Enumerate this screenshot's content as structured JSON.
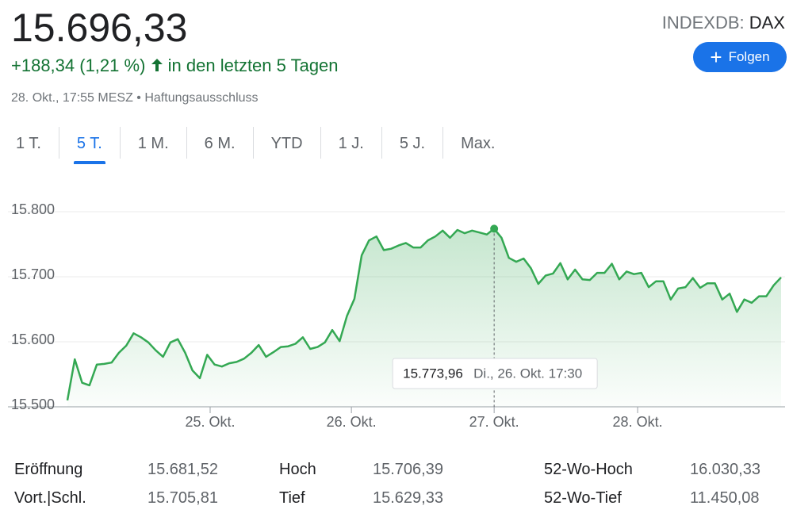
{
  "header": {
    "price": "15.696,33",
    "change": "+188,34 (1,21 %)",
    "period": "in den letzten 5 Tagen",
    "timestamp": "28. Okt., 17:55 MESZ",
    "disclaimer": "Haftungsausschluss",
    "ticker_exchange": "INDEXDB:",
    "ticker_symbol": "DAX",
    "follow": "Folgen"
  },
  "tabs": {
    "items": [
      "1 T.",
      "5 T.",
      "1 M.",
      "6 M.",
      "YTD",
      "1 J.",
      "5 J.",
      "Max."
    ],
    "selected": 1
  },
  "chart_data": {
    "type": "line",
    "color": "#34a853",
    "values": [
      15510,
      15573,
      15537,
      15533,
      15565,
      15566,
      15568,
      15583,
      15594,
      15613,
      15607,
      15599,
      15587,
      15577,
      15599,
      15604,
      15583,
      15556,
      15544,
      15580,
      15565,
      15562,
      15567,
      15569,
      15574,
      15583,
      15595,
      15577,
      15584,
      15592,
      15593,
      15597,
      15607,
      15589,
      15592,
      15599,
      15618,
      15601,
      15640,
      15666,
      15733,
      15756,
      15762,
      15741,
      15743,
      15748,
      15752,
      15745,
      15745,
      15756,
      15762,
      15771,
      15760,
      15772,
      15767,
      15771,
      15768,
      15765,
      15773.96,
      15760,
      15729,
      15723,
      15728,
      15713,
      15689,
      15702,
      15705,
      15721,
      15696,
      15711,
      15696,
      15695,
      15706,
      15706,
      15720,
      15696,
      15708,
      15704,
      15706,
      15684,
      15693,
      15693,
      15665,
      15682,
      15684,
      15698,
      15683,
      15690,
      15690,
      15665,
      15674,
      15646,
      15665,
      15660,
      15670,
      15670,
      15687,
      15699
    ],
    "xlim": [
      0,
      97
    ],
    "xticks": [
      {
        "value": 19.4,
        "label": "25. Okt."
      },
      {
        "value": 38.6,
        "label": "26. Okt."
      },
      {
        "value": 58,
        "label": "27. Okt."
      },
      {
        "value": 77.5,
        "label": "28. Okt."
      }
    ],
    "ylim": [
      15500,
      15800
    ],
    "yticks": [
      {
        "value": 15500,
        "label": "15.500"
      },
      {
        "value": 15600,
        "label": "15.600"
      },
      {
        "value": 15700,
        "label": "15.700"
      },
      {
        "value": 15800,
        "label": "15.800"
      }
    ],
    "grid": true,
    "tooltip": {
      "index": 58,
      "value": "15.773,96",
      "date": "Di., 26. Okt. 17:30"
    }
  },
  "stats": {
    "rows": [
      [
        "Eröffnung",
        "15.681,52",
        "Hoch",
        "15.706,39",
        "52-Wo-Hoch",
        "16.030,33"
      ],
      [
        "Vort.|Schl.",
        "15.705,81",
        "Tief",
        "15.629,33",
        "52-Wo-Tief",
        "11.450,08"
      ]
    ]
  }
}
